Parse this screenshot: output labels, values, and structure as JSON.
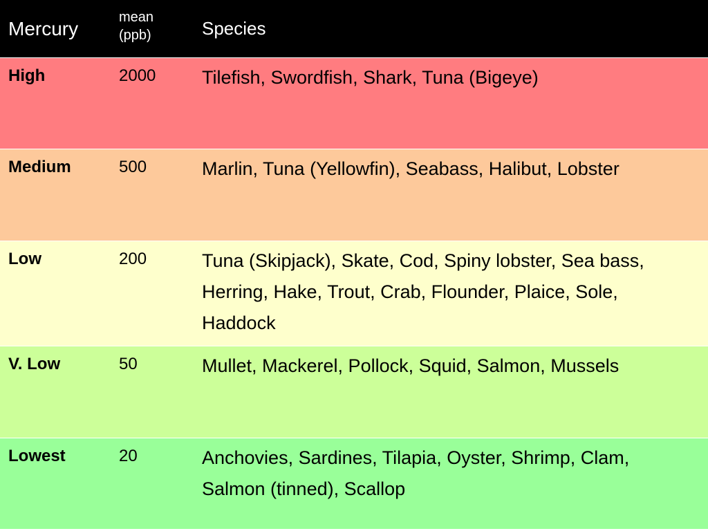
{
  "table": {
    "header": [
      "Mercury",
      "mean (ppb)",
      "Species"
    ],
    "rows": [
      [
        "High",
        2000,
        "Tilefish, Swordfish, Shark, Tuna (Bigeye)"
      ],
      [
        "Medium",
        500,
        "Marlin, Tuna (Yellowfin), Seabass, Halibut, Lobster"
      ],
      [
        "Low",
        200,
        "Tuna (Skipjack), Skate, Cod, Spiny lobster, Sea bass, Herring, Hake, Trout, Crab, Flounder, Plaice, Sole, Haddock"
      ],
      [
        "V. Low",
        50,
        "Mullet, Mackerel, Pollock, Squid, Salmon, Mussels"
      ],
      [
        "Lowest",
        20,
        "Anchovies, Sardines, Tilapia, Oyster, Shrimp, Clam, Salmon (tinned), Scallop"
      ]
    ]
  }
}
